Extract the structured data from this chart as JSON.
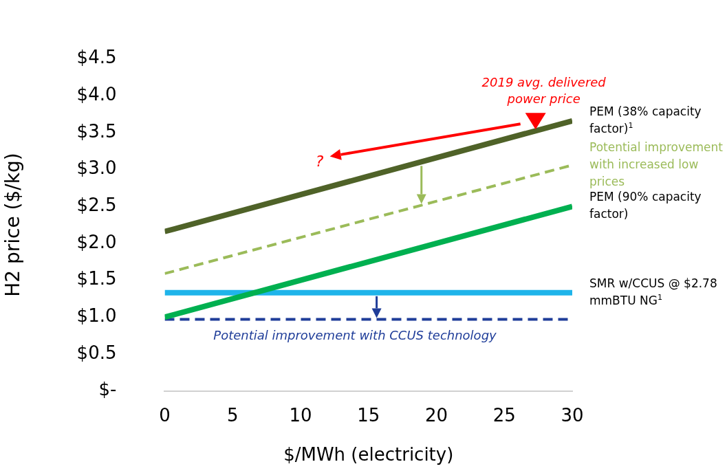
{
  "chart_data": {
    "type": "line",
    "xlabel": "$/MWh (electricity)",
    "ylabel": "H2 price ($/kg)",
    "x": [
      0,
      30
    ],
    "xlim": [
      0,
      30
    ],
    "xticks": [
      0,
      5,
      10,
      15,
      20,
      25,
      30
    ],
    "ylim": [
      0,
      4.5
    ],
    "yticks": [
      {
        "value": 0,
        "label": "$-"
      },
      {
        "value": 0.5,
        "label": "$0.5"
      },
      {
        "value": 1,
        "label": "$1.0"
      },
      {
        "value": 1.5,
        "label": "$1.5"
      },
      {
        "value": 2,
        "label": "$2.0"
      },
      {
        "value": 2.5,
        "label": "$2.5"
      },
      {
        "value": 3,
        "label": "$3.0"
      },
      {
        "value": 3.5,
        "label": "$3.5"
      },
      {
        "value": 4,
        "label": "$4.0"
      },
      {
        "value": 4.5,
        "label": "$4.5"
      }
    ],
    "grid": false,
    "legend": false,
    "marker": "none",
    "series": [
      {
        "name": "PEM (38% capacity factor)$^{1}$",
        "color": "#4f6228",
        "values": [
          2.16,
          3.66
        ],
        "line_style": "solid"
      },
      {
        "name": "Potential improvement with increased low prices",
        "color": "#9bbb59",
        "values": [
          1.59,
          3.06
        ],
        "line_style": "dashed"
      },
      {
        "name": "PEM (90% capacity factor)",
        "color": "#00b050",
        "values": [
          1.0,
          2.5
        ],
        "line_style": "solid"
      },
      {
        "name": "SMR w/CCUS @ $2.78 mmBTU NG$^{1}$",
        "color": "#1fb4ea",
        "values": [
          1.33,
          1.33
        ],
        "line_style": "solid"
      },
      {
        "color": "#1f3d99",
        "values": [
          0.97,
          0.97
        ],
        "line_style": "dashed"
      }
    ],
    "annotations": [
      "2019 avg. delivered power price",
      "?",
      {
        "text": "Potential improvement with CCUS technology",
        "x": 14,
        "y": 0.97
      }
    ]
  }
}
